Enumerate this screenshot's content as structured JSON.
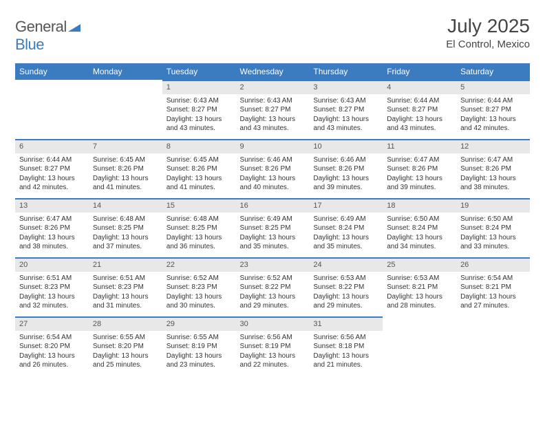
{
  "brand": {
    "part1": "General",
    "part2": "Blue"
  },
  "title": "July 2025",
  "location": "El Control, Mexico",
  "colors": {
    "header_bg": "#3b7bbf",
    "header_text": "#ffffff",
    "daynum_bg": "#e8e8e8",
    "daynum_border": "#3b7bbf",
    "body_bg": "#ffffff",
    "text": "#333333",
    "brand_gray": "#555555"
  },
  "dayHeaders": [
    "Sunday",
    "Monday",
    "Tuesday",
    "Wednesday",
    "Thursday",
    "Friday",
    "Saturday"
  ],
  "weeks": [
    [
      null,
      null,
      {
        "n": "1",
        "sr": "6:43 AM",
        "ss": "8:27 PM",
        "dl": "13 hours and 43 minutes."
      },
      {
        "n": "2",
        "sr": "6:43 AM",
        "ss": "8:27 PM",
        "dl": "13 hours and 43 minutes."
      },
      {
        "n": "3",
        "sr": "6:43 AM",
        "ss": "8:27 PM",
        "dl": "13 hours and 43 minutes."
      },
      {
        "n": "4",
        "sr": "6:44 AM",
        "ss": "8:27 PM",
        "dl": "13 hours and 43 minutes."
      },
      {
        "n": "5",
        "sr": "6:44 AM",
        "ss": "8:27 PM",
        "dl": "13 hours and 42 minutes."
      }
    ],
    [
      {
        "n": "6",
        "sr": "6:44 AM",
        "ss": "8:27 PM",
        "dl": "13 hours and 42 minutes."
      },
      {
        "n": "7",
        "sr": "6:45 AM",
        "ss": "8:26 PM",
        "dl": "13 hours and 41 minutes."
      },
      {
        "n": "8",
        "sr": "6:45 AM",
        "ss": "8:26 PM",
        "dl": "13 hours and 41 minutes."
      },
      {
        "n": "9",
        "sr": "6:46 AM",
        "ss": "8:26 PM",
        "dl": "13 hours and 40 minutes."
      },
      {
        "n": "10",
        "sr": "6:46 AM",
        "ss": "8:26 PM",
        "dl": "13 hours and 39 minutes."
      },
      {
        "n": "11",
        "sr": "6:47 AM",
        "ss": "8:26 PM",
        "dl": "13 hours and 39 minutes."
      },
      {
        "n": "12",
        "sr": "6:47 AM",
        "ss": "8:26 PM",
        "dl": "13 hours and 38 minutes."
      }
    ],
    [
      {
        "n": "13",
        "sr": "6:47 AM",
        "ss": "8:26 PM",
        "dl": "13 hours and 38 minutes."
      },
      {
        "n": "14",
        "sr": "6:48 AM",
        "ss": "8:25 PM",
        "dl": "13 hours and 37 minutes."
      },
      {
        "n": "15",
        "sr": "6:48 AM",
        "ss": "8:25 PM",
        "dl": "13 hours and 36 minutes."
      },
      {
        "n": "16",
        "sr": "6:49 AM",
        "ss": "8:25 PM",
        "dl": "13 hours and 35 minutes."
      },
      {
        "n": "17",
        "sr": "6:49 AM",
        "ss": "8:24 PM",
        "dl": "13 hours and 35 minutes."
      },
      {
        "n": "18",
        "sr": "6:50 AM",
        "ss": "8:24 PM",
        "dl": "13 hours and 34 minutes."
      },
      {
        "n": "19",
        "sr": "6:50 AM",
        "ss": "8:24 PM",
        "dl": "13 hours and 33 minutes."
      }
    ],
    [
      {
        "n": "20",
        "sr": "6:51 AM",
        "ss": "8:23 PM",
        "dl": "13 hours and 32 minutes."
      },
      {
        "n": "21",
        "sr": "6:51 AM",
        "ss": "8:23 PM",
        "dl": "13 hours and 31 minutes."
      },
      {
        "n": "22",
        "sr": "6:52 AM",
        "ss": "8:23 PM",
        "dl": "13 hours and 30 minutes."
      },
      {
        "n": "23",
        "sr": "6:52 AM",
        "ss": "8:22 PM",
        "dl": "13 hours and 29 minutes."
      },
      {
        "n": "24",
        "sr": "6:53 AM",
        "ss": "8:22 PM",
        "dl": "13 hours and 29 minutes."
      },
      {
        "n": "25",
        "sr": "6:53 AM",
        "ss": "8:21 PM",
        "dl": "13 hours and 28 minutes."
      },
      {
        "n": "26",
        "sr": "6:54 AM",
        "ss": "8:21 PM",
        "dl": "13 hours and 27 minutes."
      }
    ],
    [
      {
        "n": "27",
        "sr": "6:54 AM",
        "ss": "8:20 PM",
        "dl": "13 hours and 26 minutes."
      },
      {
        "n": "28",
        "sr": "6:55 AM",
        "ss": "8:20 PM",
        "dl": "13 hours and 25 minutes."
      },
      {
        "n": "29",
        "sr": "6:55 AM",
        "ss": "8:19 PM",
        "dl": "13 hours and 23 minutes."
      },
      {
        "n": "30",
        "sr": "6:56 AM",
        "ss": "8:19 PM",
        "dl": "13 hours and 22 minutes."
      },
      {
        "n": "31",
        "sr": "6:56 AM",
        "ss": "8:18 PM",
        "dl": "13 hours and 21 minutes."
      },
      null,
      null
    ]
  ],
  "labels": {
    "sunrise": "Sunrise:",
    "sunset": "Sunset:",
    "daylight": "Daylight:"
  }
}
